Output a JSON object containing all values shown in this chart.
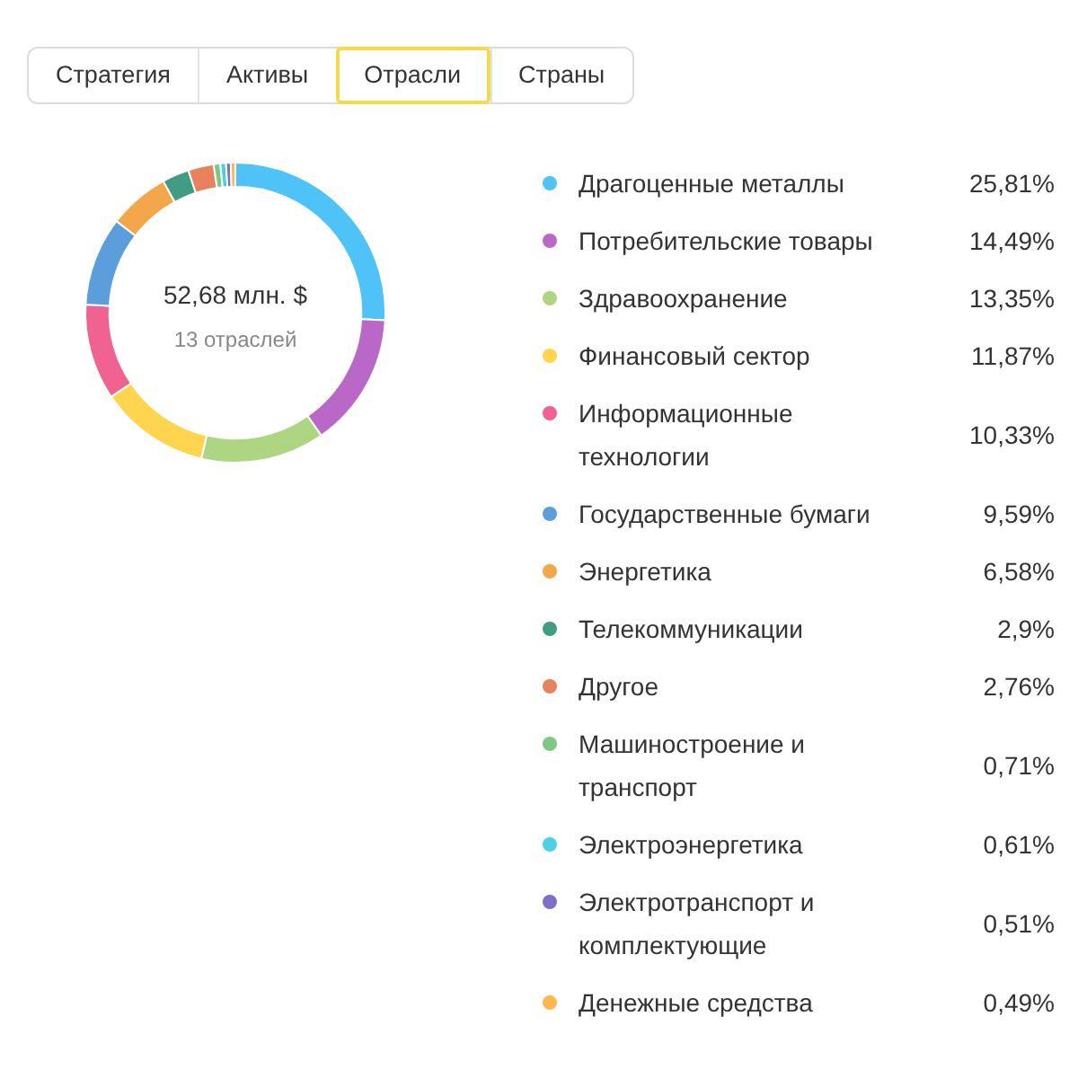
{
  "chart_data": {
    "type": "donut",
    "title": "52,68 млн. $",
    "subtitle": "13 отраслей",
    "annotations": [
      "Стратегия",
      "Активы",
      "Отрасли",
      "Страны"
    ],
    "categories": [
      "Драгоценные металлы",
      "Потребительские товары",
      "Здравоохранение",
      "Финансовый сектор",
      "Информационные технологии",
      "Государственные бумаги",
      "Энергетика",
      "Телекоммуникации",
      "Другое",
      "Машиностроение и транспорт",
      "Электроэнергетика",
      "Электротранспорт и комплектующие",
      "Денежные средства"
    ],
    "values": [
      25.81,
      14.49,
      13.35,
      11.87,
      10.33,
      9.59,
      6.58,
      2.9,
      2.76,
      0.71,
      0.61,
      0.51,
      0.49
    ],
    "value_labels": [
      "25,81%",
      "14,49%",
      "13,35%",
      "11,87%",
      "10,33%",
      "9,59%",
      "6,58%",
      "2,9%",
      "2,76%",
      "0,71%",
      "0,61%",
      "0,51%",
      "0,49%"
    ],
    "colors": [
      "#4fc3f7",
      "#ba68c8",
      "#aed581",
      "#ffd54f",
      "#f06292",
      "#5c9ddb",
      "#f4a64b",
      "#409c82",
      "#e8825e",
      "#81c784",
      "#4dd0e1",
      "#7e6fc8",
      "#ffb74d"
    ],
    "legend": "right"
  }
}
